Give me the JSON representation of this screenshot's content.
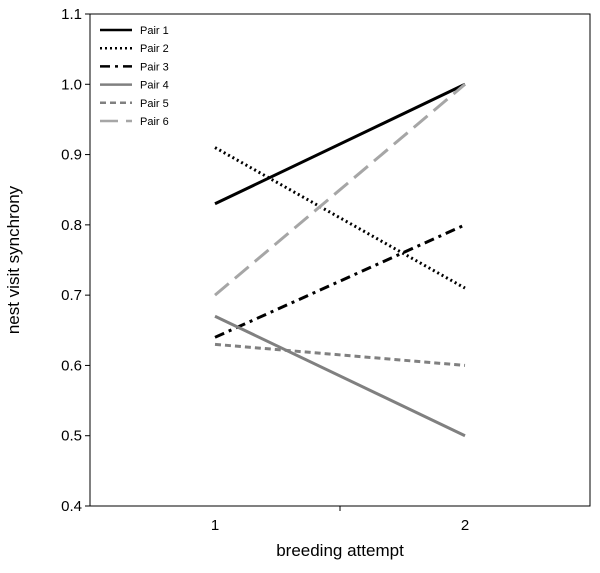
{
  "chart_data": {
    "type": "line",
    "title": "",
    "xlabel": "breeding attempt",
    "ylabel": "nest visit synchrony",
    "x": [
      1,
      2
    ],
    "xlim": [
      0.5,
      2.5
    ],
    "ylim": [
      0.4,
      1.1
    ],
    "x_ticks": [
      "1",
      "2"
    ],
    "y_ticks": [
      "0.4",
      "0.5",
      "0.6",
      "0.7",
      "0.8",
      "0.9",
      "1.0",
      "1.1"
    ],
    "grid": false,
    "legend_position": "top-left",
    "series": [
      {
        "name": "Pair 1",
        "values": [
          0.83,
          1.0
        ],
        "color": "#000000",
        "dash": "solid"
      },
      {
        "name": "Pair 2",
        "values": [
          0.91,
          0.71
        ],
        "color": "#000000",
        "dash": "dotted"
      },
      {
        "name": "Pair 3",
        "values": [
          0.64,
          0.8
        ],
        "color": "#000000",
        "dash": "dashdot"
      },
      {
        "name": "Pair 4",
        "values": [
          0.67,
          0.5
        ],
        "color": "#808080",
        "dash": "solid"
      },
      {
        "name": "Pair 5",
        "values": [
          0.63,
          0.6
        ],
        "color": "#808080",
        "dash": "shortdash"
      },
      {
        "name": "Pair 6",
        "values": [
          0.7,
          1.0
        ],
        "color": "#a6a6a6",
        "dash": "longdash"
      }
    ]
  }
}
